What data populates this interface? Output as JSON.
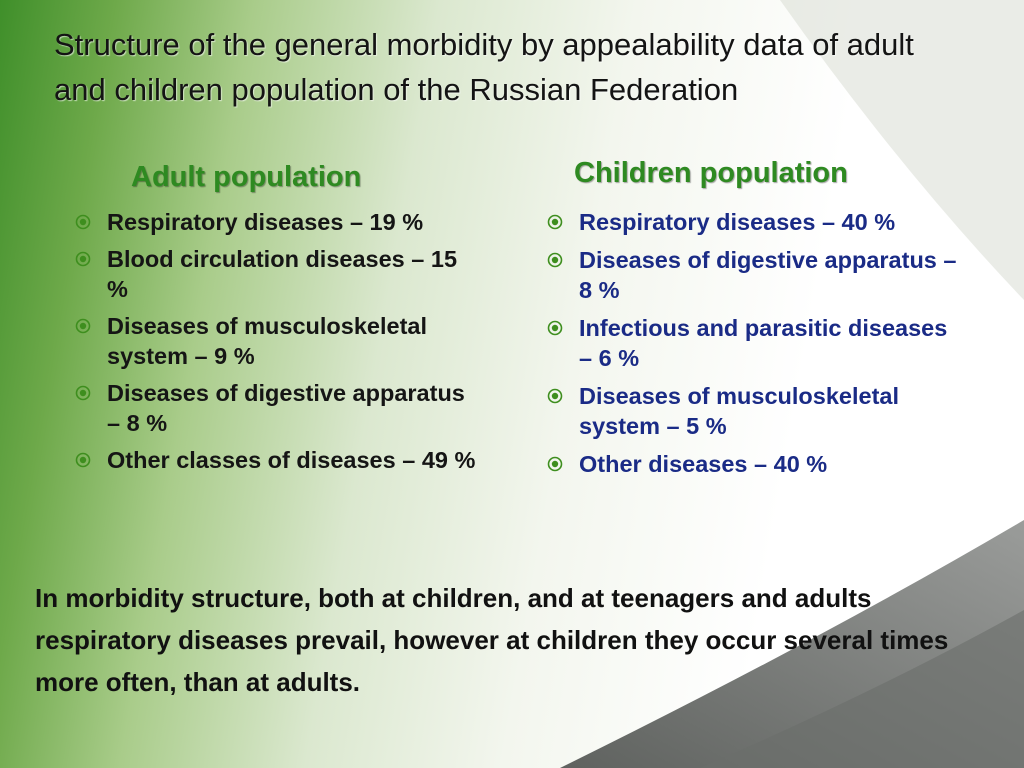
{
  "slide": {
    "title": "Structure of the general morbidity by appealability data of adult and children population of the Russian Federation",
    "adult": {
      "heading": "Adult population",
      "items": [
        "Respiratory diseases – 19 %",
        "Blood circulation diseases – 15 %",
        "Diseases of musculoskeletal system – 9 %",
        "Diseases of digestive apparatus – 8 %",
        "Other classes of diseases – 49 %"
      ]
    },
    "children": {
      "heading": "Children population",
      "items": [
        "Respiratory diseases – 40 %",
        "Diseases of digestive apparatus – 8 %",
        "Infectious and parasitic diseases – 6 %",
        "Diseases of musculoskeletal system – 5 %",
        "Other diseases – 40 %"
      ]
    },
    "summary": "In morbidity structure, both at children, and at teenagers and adults respiratory diseases prevail, however at children they occur several times more often, than at adults."
  },
  "colors": {
    "heading_green": "#2e8a21",
    "children_text": "#1a2b86",
    "bullet_green": "#3e8e1e",
    "background_green": "#3f8f2a",
    "corner_gray": "#7b7d7b"
  },
  "icons": {
    "bullet": "target-bullet-icon"
  }
}
